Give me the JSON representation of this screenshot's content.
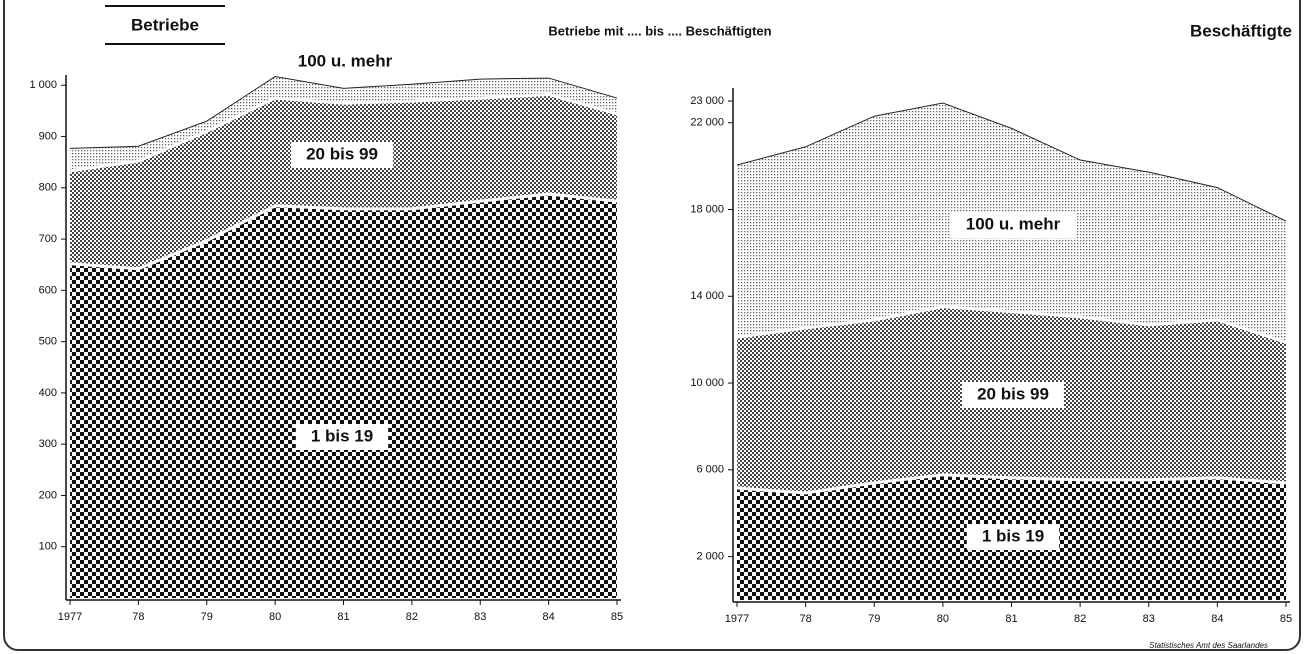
{
  "subtitle": "Betriebe mit .... bis .... Beschäftigten",
  "source": "Statistisches Amt des Saarlandes",
  "chart_data": [
    {
      "type": "area",
      "stacked": true,
      "title": "Betriebe",
      "categories": [
        "1977",
        "78",
        "79",
        "80",
        "81",
        "82",
        "83",
        "84",
        "85"
      ],
      "series": [
        {
          "name": "1 bis 19",
          "color": "#111111",
          "values": [
            652,
            642,
            697,
            765,
            759,
            759,
            774,
            788,
            774
          ]
        },
        {
          "name": "20 bis 99",
          "color": "#444444",
          "values": [
            181,
            210,
            213,
            210,
            206,
            210,
            201,
            194,
            170
          ]
        },
        {
          "name": "100 u. mehr",
          "color": "#666666",
          "values": [
            44,
            29,
            20,
            42,
            29,
            33,
            37,
            32,
            31
          ]
        }
      ],
      "ylim": [
        0,
        1020
      ],
      "yticks": [
        100,
        200,
        300,
        400,
        500,
        600,
        700,
        800,
        900,
        {
          "value": 1000,
          "label": "1 000"
        }
      ]
    },
    {
      "type": "area",
      "stacked": true,
      "title": "Beschäftigte",
      "categories": [
        "1977",
        "78",
        "79",
        "80",
        "81",
        "82",
        "83",
        "84",
        "85"
      ],
      "series": [
        {
          "name": "1 bis 19",
          "color": "#111111",
          "values": [
            5160,
            4930,
            5400,
            5770,
            5630,
            5540,
            5540,
            5630,
            5400
          ]
        },
        {
          "name": "20 bis 99",
          "color": "#444444",
          "values": [
            6950,
            7610,
            7510,
            7750,
            7660,
            7510,
            7140,
            7280,
            6480
          ]
        },
        {
          "name": "100 u. mehr",
          "color": "#666666",
          "values": [
            7940,
            8350,
            9390,
            9390,
            8450,
            7230,
            7040,
            6100,
            5580
          ]
        }
      ],
      "ylim": [
        0,
        23600
      ],
      "yticks": [
        {
          "value": 2000,
          "label": "2 000"
        },
        {
          "value": 6000,
          "label": "6 000"
        },
        {
          "value": 10000,
          "label": "10 000"
        },
        {
          "value": 14000,
          "label": "14 000"
        },
        {
          "value": 18000,
          "label": "18 000"
        },
        {
          "value": 22000,
          "label": "22 000"
        },
        {
          "value": 23000,
          "label": "23 000"
        }
      ]
    }
  ]
}
